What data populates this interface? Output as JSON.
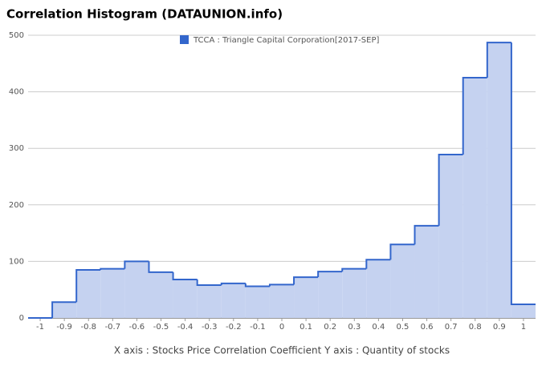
{
  "chart_data": {
    "type": "area",
    "step": "center",
    "title": "Correlation Histogram (DATAUNION.info)",
    "xlabel": "X axis : Stocks Price Correlation Coefficient  Y axis : Quantity of stocks",
    "x": [
      -1,
      -0.9,
      -0.8,
      -0.7,
      -0.6,
      -0.5,
      -0.4,
      -0.3,
      -0.2,
      -0.1,
      0,
      0.1,
      0.2,
      0.3,
      0.4,
      0.5,
      0.6,
      0.7,
      0.8,
      0.9,
      1
    ],
    "series": [
      {
        "name": "TCCA : Triangle Capital Corporation[2017-SEP]",
        "color": "#3366cc",
        "fill": "#c5d2f0",
        "values": [
          0,
          28,
          85,
          87,
          100,
          81,
          68,
          58,
          61,
          56,
          59,
          72,
          82,
          87,
          103,
          130,
          163,
          289,
          425,
          487,
          24
        ]
      }
    ],
    "xlim": [
      -1.05,
      1.05
    ],
    "xticks": [
      -1,
      -0.9,
      -0.8,
      -0.7,
      -0.6,
      -0.5,
      -0.4,
      -0.3,
      -0.2,
      -0.1,
      0,
      0.1,
      0.2,
      0.3,
      0.4,
      0.5,
      0.6,
      0.7,
      0.8,
      0.9,
      1
    ],
    "ylim": [
      0,
      500
    ],
    "yticks": [
      0,
      100,
      200,
      300,
      400,
      500
    ],
    "grid": true,
    "legend": "top"
  }
}
